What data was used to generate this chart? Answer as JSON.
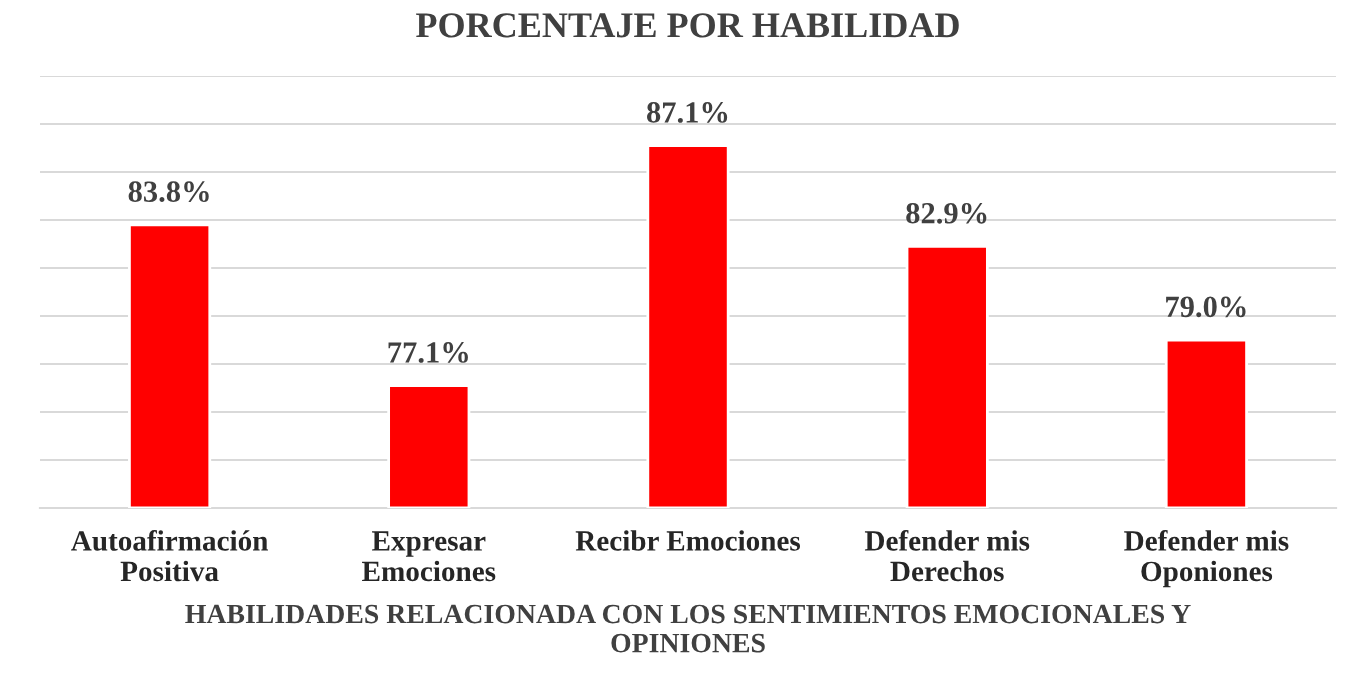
{
  "chart_data": {
    "type": "bar",
    "title": "PORCENTAJE POR HABILIDAD",
    "xlabel": "HABILIDADES RELACIONADA CON LOS SENTIMIENTOS EMOCIONALES Y\nOPINIONES",
    "categories": [
      "Autoafirmación\nPositiva",
      "Expresar\nEmociones",
      "Recibr Emociones",
      "Defender mis\nDerechos",
      "Defender mis\nOponiones"
    ],
    "values": [
      83.8,
      77.1,
      87.1,
      82.9,
      79.0
    ],
    "value_labels": [
      "83.8%",
      "77.1%",
      "87.1%",
      "82.9%",
      "79.0%"
    ],
    "color": "#ff0000",
    "ylim": [
      72,
      90
    ],
    "yticks": [
      {
        "value": 72,
        "label": null
      },
      {
        "value": 74,
        "label": null
      },
      {
        "value": 76,
        "label": null
      },
      {
        "value": 78,
        "label": null
      },
      {
        "value": 80,
        "label": null
      },
      {
        "value": 82,
        "label": null
      },
      {
        "value": 84,
        "label": null
      },
      {
        "value": 86,
        "label": null
      },
      {
        "value": 88,
        "label": null
      },
      {
        "value": 90,
        "label": null
      }
    ],
    "grid": "y",
    "legend": false
  }
}
